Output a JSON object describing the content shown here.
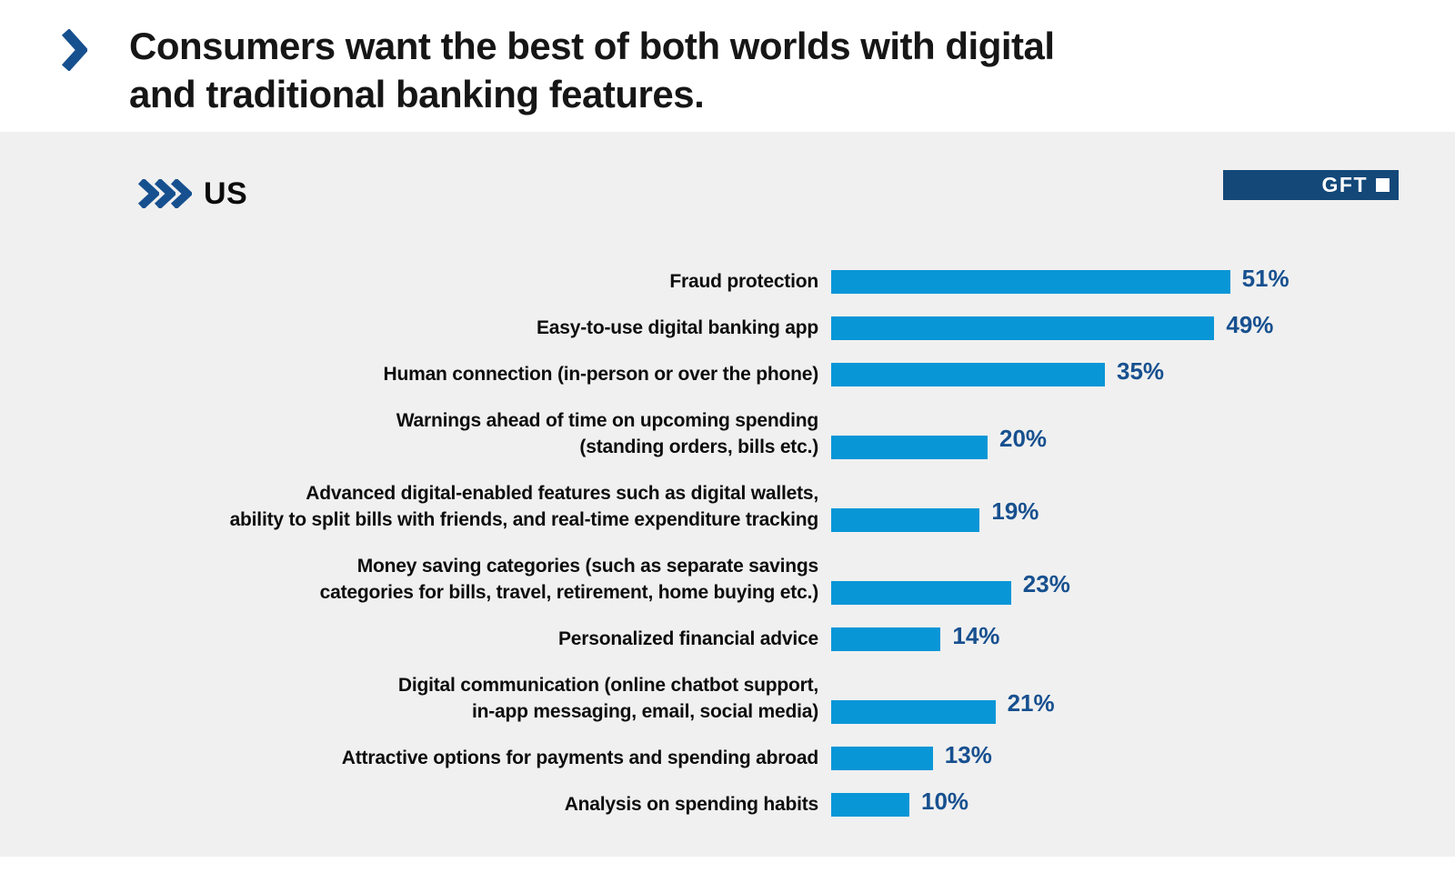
{
  "header": {
    "title_line1": "Consumers want the best of both worlds with digital",
    "title_line2": "and traditional banking features."
  },
  "region": {
    "label": "US"
  },
  "brand": {
    "name": "GFT"
  },
  "colors": {
    "navy": "#17508F",
    "badge_navy": "#134879",
    "bar_blue": "#0996D7",
    "canvas_bg": "#F0F0F0",
    "title_color": "#161616"
  },
  "chart_data": {
    "type": "bar",
    "orientation": "horizontal",
    "title": "US",
    "unit": "%",
    "value_suffix": "%",
    "xlim": [
      0,
      60
    ],
    "grid": false,
    "legend": false,
    "bar_color": "#0996D7",
    "value_label_color": "#17508F",
    "value_label_position": "right-of-bar",
    "categories": [
      "Fraud protection",
      "Easy-to-use digital banking app",
      "Human connection (in-person or over the phone)",
      "Warnings ahead of time on upcoming spending (standing orders, bills etc.)",
      "Advanced digital-enabled features such as digital wallets, ability to split bills with friends, and real-time expenditure tracking",
      "Money saving categories (such as separate savings categories for bills, travel, retirement, home buying etc.)",
      "Personalized financial advice",
      "Digital communication (online chatbot support, in-app messaging, email, social media)",
      "Attractive options for payments and spending abroad",
      "Analysis on spending habits"
    ],
    "category_line_breaks": [
      [
        "Fraud protection"
      ],
      [
        "Easy-to-use digital banking app"
      ],
      [
        "Human connection (in-person or over the phone)"
      ],
      [
        "Warnings ahead of time on upcoming spending",
        "(standing orders, bills etc.)"
      ],
      [
        "Advanced digital-enabled features such as digital wallets,",
        "ability to split bills with friends, and real-time expenditure tracking"
      ],
      [
        "Money saving categories (such as separate savings",
        "categories for bills, travel, retirement, home buying etc.)"
      ],
      [
        "Personalized financial advice"
      ],
      [
        "Digital communication (online chatbot support,",
        "in-app messaging, email, social media)"
      ],
      [
        "Attractive options for payments and spending abroad"
      ],
      [
        "Analysis on spending habits"
      ]
    ],
    "values": [
      51,
      49,
      35,
      20,
      19,
      23,
      14,
      21,
      13,
      10
    ],
    "value_labels": [
      "51%",
      "49%",
      "35%",
      "20%",
      "19%",
      "23%",
      "14%",
      "21%",
      "13%",
      "10%"
    ]
  }
}
